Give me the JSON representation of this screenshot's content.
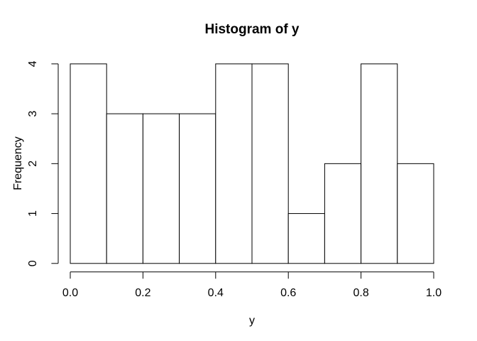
{
  "figure": {
    "background": "#ffffff"
  },
  "chart_data": {
    "type": "bar",
    "subtype": "histogram",
    "title": "Histogram of y",
    "xlabel": "y",
    "ylabel": "Frequency",
    "bin_edges": [
      0.0,
      0.1,
      0.2,
      0.3,
      0.4,
      0.5,
      0.6,
      0.7,
      0.8,
      0.9,
      1.0
    ],
    "counts": [
      4,
      3,
      3,
      3,
      4,
      4,
      1,
      2,
      4,
      2
    ],
    "xlim": [
      0.0,
      1.0
    ],
    "ylim": [
      0,
      4
    ],
    "x_ticks": {
      "values": [
        0.0,
        0.2,
        0.4,
        0.6,
        0.8,
        1.0
      ],
      "labels": [
        "0.0",
        "0.2",
        "0.4",
        "0.6",
        "0.8",
        "1.0"
      ]
    },
    "y_ticks": {
      "values": [
        0,
        1,
        2,
        3,
        4
      ],
      "labels": [
        "0",
        "1",
        "2",
        "3",
        "4"
      ]
    },
    "grid": false,
    "legend": false,
    "bar_fill": "#ffffff",
    "line_color": "#000000",
    "text_color": "#000000"
  }
}
